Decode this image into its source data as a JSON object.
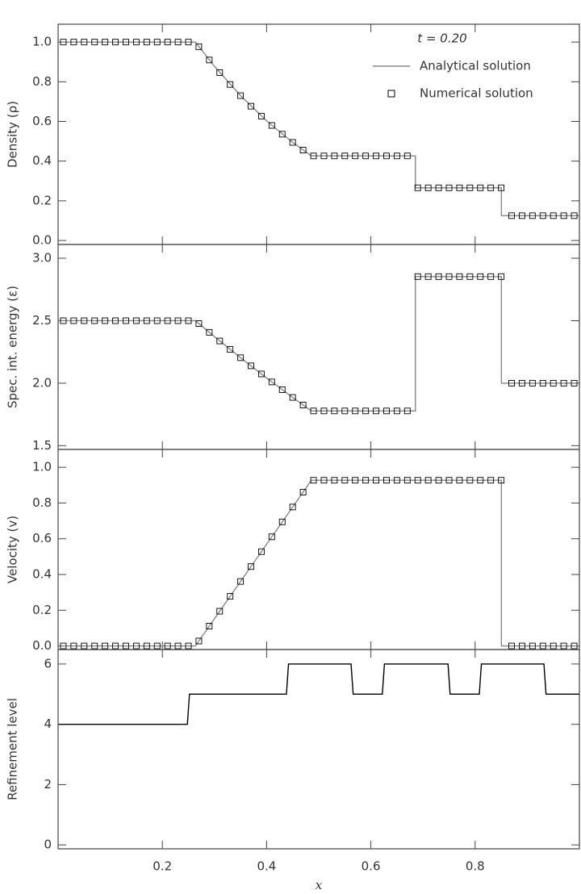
{
  "chart_data": [
    {
      "type": "line",
      "ylabel": "Density (ρ)",
      "annotation": "t = 0.20",
      "legend": "upper right",
      "xlim": [
        0,
        1
      ],
      "xticks": [
        0.2,
        0.4,
        0.6,
        0.8
      ],
      "ylim": [
        -0.02,
        1.09
      ],
      "yticks": [
        {
          "value": 0,
          "label": "0.0"
        },
        0.2,
        0.4,
        0.6,
        0.8,
        {
          "value": 1,
          "label": "1.0"
        }
      ],
      "series": [
        {
          "name": "Analytical solution",
          "color": "#888888",
          "x": [
            0,
            0.2634,
            0.3,
            0.35,
            0.4,
            0.45,
            0.4859,
            0.6854,
            0.6854,
            0.8504,
            0.8504,
            1.0
          ],
          "values": [
            1,
            1,
            0.8775,
            0.73,
            0.603,
            0.4944,
            0.4263,
            0.4263,
            0.2656,
            0.2656,
            0.125,
            0.125
          ]
        },
        {
          "name": "Numerical solution",
          "color": "#000000",
          "marker": "square",
          "x": [
            0.01,
            0.03,
            0.05,
            0.07,
            0.09,
            0.11,
            0.13,
            0.15,
            0.17,
            0.19,
            0.21,
            0.23,
            0.25,
            0.27,
            0.29,
            0.31,
            0.33,
            0.35,
            0.37,
            0.39,
            0.41,
            0.43,
            0.45,
            0.47,
            0.49,
            0.51,
            0.53,
            0.55,
            0.57,
            0.59,
            0.61,
            0.63,
            0.65,
            0.67,
            0.69,
            0.71,
            0.73,
            0.75,
            0.77,
            0.79,
            0.81,
            0.83,
            0.85,
            0.87,
            0.89,
            0.91,
            0.93,
            0.95,
            0.97,
            0.99
          ],
          "values": [
            1,
            1,
            1,
            1,
            1,
            1,
            1,
            1,
            1,
            1,
            1,
            1,
            1,
            0.9768,
            0.9097,
            0.8461,
            0.7863,
            0.73,
            0.6768,
            0.6268,
            0.5798,
            0.5357,
            0.4943,
            0.4555,
            0.4263,
            0.4263,
            0.4263,
            0.4263,
            0.4263,
            0.4263,
            0.4263,
            0.4263,
            0.4263,
            0.4263,
            0.2656,
            0.2656,
            0.2656,
            0.2656,
            0.2656,
            0.2656,
            0.2656,
            0.2656,
            0.2656,
            0.125,
            0.125,
            0.125,
            0.125,
            0.125,
            0.125,
            0.125
          ]
        }
      ]
    },
    {
      "type": "line",
      "ylabel": "Spec. int. energy (ε)",
      "xlim": [
        0,
        1
      ],
      "xticks": [
        0.2,
        0.4,
        0.6,
        0.8
      ],
      "ylim": [
        1.47,
        3.11
      ],
      "yticks": [
        1.5,
        {
          "value": 2,
          "label": "2.0"
        },
        2.5,
        {
          "value": 3,
          "label": "3.0"
        }
      ],
      "series": [
        {
          "color": "#888888",
          "x": [
            0,
            0.2634,
            0.3,
            0.35,
            0.4,
            0.45,
            0.4859,
            0.6854,
            0.6854,
            0.8504,
            0.8504,
            1.0
          ],
          "values": [
            2.5,
            2.5,
            2.373,
            2.204,
            2.042,
            1.886,
            1.778,
            1.778,
            2.853,
            2.853,
            2.0,
            2.0
          ]
        },
        {
          "color": "#000000",
          "marker": "square",
          "x": [
            0.01,
            0.03,
            0.05,
            0.07,
            0.09,
            0.11,
            0.13,
            0.15,
            0.17,
            0.19,
            0.21,
            0.23,
            0.25,
            0.27,
            0.29,
            0.31,
            0.33,
            0.35,
            0.37,
            0.39,
            0.41,
            0.43,
            0.45,
            0.47,
            0.49,
            0.51,
            0.53,
            0.55,
            0.57,
            0.59,
            0.61,
            0.63,
            0.65,
            0.67,
            0.69,
            0.71,
            0.73,
            0.75,
            0.77,
            0.79,
            0.81,
            0.83,
            0.85,
            0.87,
            0.89,
            0.91,
            0.93,
            0.95,
            0.97,
            0.99
          ],
          "values": [
            2.5,
            2.5,
            2.5,
            2.5,
            2.5,
            2.5,
            2.5,
            2.5,
            2.5,
            2.5,
            2.5,
            2.5,
            2.5,
            2.477,
            2.407,
            2.338,
            2.271,
            2.204,
            2.139,
            2.074,
            2.01,
            1.948,
            1.886,
            1.825,
            1.778,
            1.778,
            1.778,
            1.778,
            1.778,
            1.778,
            1.778,
            1.778,
            1.778,
            1.778,
            2.853,
            2.853,
            2.853,
            2.853,
            2.853,
            2.853,
            2.853,
            2.853,
            2.853,
            2.0,
            2.0,
            2.0,
            2.0,
            2.0,
            2.0,
            2.0
          ]
        }
      ]
    },
    {
      "type": "line",
      "ylabel": "Velocity (v)",
      "xlim": [
        0,
        1
      ],
      "xticks": [
        0.2,
        0.4,
        0.6,
        0.8
      ],
      "ylim": [
        -0.02,
        1.1
      ],
      "yticks": [
        {
          "value": 0,
          "label": "0.0"
        },
        0.2,
        0.4,
        0.6,
        0.8,
        {
          "value": 1,
          "label": "1.0"
        }
      ],
      "series": [
        {
          "color": "#888888",
          "x": [
            0,
            0.2634,
            0.3,
            0.35,
            0.4,
            0.45,
            0.4859,
            0.6854,
            0.6854,
            0.8504,
            0.8504,
            1.0
          ],
          "values": [
            0,
            0,
            0.1527,
            0.361,
            0.5693,
            0.7777,
            0.9274,
            0.9274,
            0.9274,
            0.9274,
            0,
            0
          ]
        },
        {
          "color": "#000000",
          "marker": "square",
          "x": [
            0.01,
            0.03,
            0.05,
            0.07,
            0.09,
            0.11,
            0.13,
            0.15,
            0.17,
            0.19,
            0.21,
            0.23,
            0.25,
            0.27,
            0.29,
            0.31,
            0.33,
            0.35,
            0.37,
            0.39,
            0.41,
            0.43,
            0.45,
            0.47,
            0.49,
            0.51,
            0.53,
            0.55,
            0.57,
            0.59,
            0.61,
            0.63,
            0.65,
            0.67,
            0.69,
            0.71,
            0.73,
            0.75,
            0.77,
            0.79,
            0.81,
            0.83,
            0.85,
            0.87,
            0.89,
            0.91,
            0.93,
            0.95,
            0.97,
            0.99
          ],
          "values": [
            0,
            0,
            0,
            0,
            0,
            0,
            0,
            0,
            0,
            0,
            0,
            0,
            0,
            0.0277,
            0.111,
            0.1944,
            0.2777,
            0.361,
            0.4444,
            0.5277,
            0.611,
            0.6944,
            0.7777,
            0.861,
            0.9274,
            0.9274,
            0.9274,
            0.9274,
            0.9274,
            0.9274,
            0.9274,
            0.9274,
            0.9274,
            0.9274,
            0.9274,
            0.9274,
            0.9274,
            0.9274,
            0.9274,
            0.9274,
            0.9274,
            0.9274,
            0.9274,
            0,
            0,
            0,
            0,
            0,
            0,
            0
          ]
        }
      ]
    },
    {
      "type": "line",
      "ylabel": "Refinement level",
      "xlabel": "x",
      "show_xtick_labels": true,
      "xlim": [
        0,
        1
      ],
      "xticks": [
        0.2,
        0.4,
        0.6,
        0.8
      ],
      "ylim": [
        -0.13,
        6.48
      ],
      "yticks": [
        0,
        2,
        4,
        6
      ],
      "series": [
        {
          "color": "#000000",
          "x": [
            0,
            0.248,
            0.252,
            0.438,
            0.442,
            0.562,
            0.566,
            0.622,
            0.626,
            0.748,
            0.752,
            0.808,
            0.812,
            0.932,
            0.936,
            1.0
          ],
          "values": [
            4,
            4,
            5,
            5,
            6,
            6,
            5,
            5,
            6,
            6,
            5,
            5,
            6,
            6,
            5,
            5
          ]
        }
      ]
    }
  ]
}
